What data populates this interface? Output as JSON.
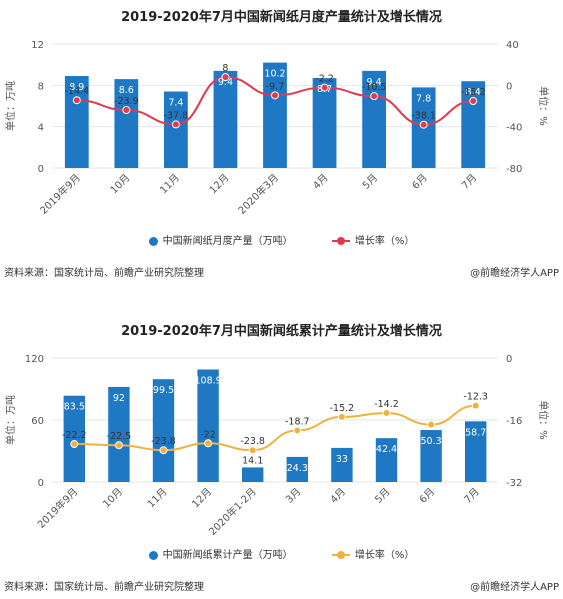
{
  "charts_text": [
    {
      "title": "2019-2020年7月中国新闻纸月度产量统计及增长情况",
      "ylabel_left": "单位：万吨",
      "ylabel_right": "单位：%",
      "legend_bar": "中国新闻纸月度产量（万吨）",
      "legend_line": "增长率（%）",
      "source": "资料来源：国家统计局、前瞻产业研究院整理",
      "brand": "@前瞻经济学人APP"
    },
    {
      "title": "2019-2020年7月中国新闻纸累计产量统计及增长情况",
      "ylabel_left": "单位：万吨",
      "ylabel_right": "单位：%",
      "legend_bar": "中国新闻纸累计产量（万吨）",
      "legend_line": "增长率（%）",
      "source": "资料来源：国家统计局、前瞻产业研究院整理",
      "brand": "@前瞻经济学人APP"
    }
  ],
  "colors": {
    "bar": "#1f78c4",
    "line1": "#e03a4e",
    "line2": "#f0b23c",
    "grid": "#e6e6e6",
    "axis_text": "#555555"
  },
  "chart_data": [
    {
      "type": "bar",
      "title": "2019-2020年7月中国新闻纸月度产量统计及增长情况",
      "categories": [
        "2019年9月",
        "10月",
        "11月",
        "12月",
        "2020年3月",
        "4月",
        "5月",
        "6月",
        "7月"
      ],
      "series": [
        {
          "name": "中国新闻纸月度产量（万吨）",
          "type": "bar",
          "axis": "left",
          "values": [
            8.9,
            8.6,
            7.4,
            9.4,
            10.2,
            8.7,
            9.4,
            7.8,
            8.4
          ]
        },
        {
          "name": "增长率（%）",
          "type": "line",
          "axis": "right",
          "values": [
            -14.4,
            -23.9,
            -37.8,
            8,
            -9.7,
            -2.2,
            -10.5,
            -38.1,
            -15.2
          ]
        }
      ],
      "ylabel": "单位：万吨",
      "y2label": "单位：%",
      "ylim": [
        0,
        12
      ],
      "yticks": [
        0,
        4,
        8,
        12
      ],
      "y2lim": [
        -80,
        40
      ],
      "y2ticks": [
        -80,
        -40,
        0,
        40
      ],
      "grid": true,
      "legend": "bottom"
    },
    {
      "type": "bar",
      "title": "2019-2020年7月中国新闻纸累计产量统计及增长情况",
      "categories": [
        "2019年9月",
        "10月",
        "11月",
        "12月",
        "2020年1-2月",
        "3月",
        "4月",
        "5月",
        "6月",
        "7月"
      ],
      "series": [
        {
          "name": "中国新闻纸累计产量（万吨）",
          "type": "bar",
          "axis": "left",
          "values": [
            83.5,
            92,
            99.5,
            108.9,
            14.1,
            24.3,
            33,
            42.4,
            50.3,
            58.7
          ]
        },
        {
          "name": "增长率（%）",
          "type": "line",
          "axis": "right",
          "values": [
            -22.2,
            -22.5,
            -23.8,
            -22,
            -23.8,
            -18.7,
            -15.2,
            -14.2,
            -17.2,
            -12.3
          ],
          "labels": [
            "-22.2",
            "-22.5",
            "-23.8",
            "-22",
            "-23.8",
            "-18.7",
            "-15.2",
            "-14.2",
            "",
            "-12.3"
          ]
        }
      ],
      "ylabel": "单位：万吨",
      "y2label": "单位：%",
      "ylim": [
        0,
        120
      ],
      "yticks": [
        0,
        60,
        120
      ],
      "y2lim": [
        -32,
        0
      ],
      "y2ticks": [
        -32,
        -16,
        0
      ],
      "grid": true,
      "legend": "bottom"
    }
  ]
}
